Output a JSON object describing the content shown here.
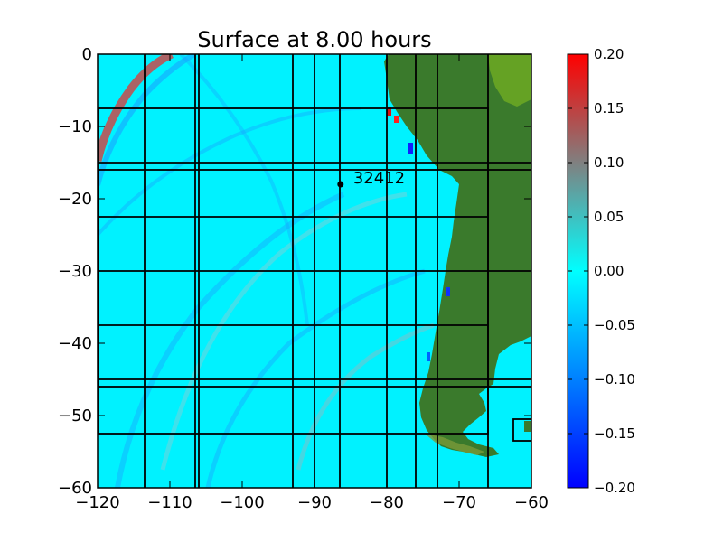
{
  "chart_data": {
    "type": "heatmap",
    "title": "Surface at 8.00 hours",
    "xlabel": "",
    "ylabel": "",
    "xlim": [
      -120,
      -60
    ],
    "ylim": [
      -60,
      0
    ],
    "x_ticks": [
      -120,
      -110,
      -100,
      -90,
      -80,
      -70,
      -60
    ],
    "y_ticks": [
      0,
      -10,
      -20,
      -30,
      -40,
      -50,
      -60
    ],
    "grid": false,
    "colorbar": {
      "range": [
        -0.2,
        0.2
      ],
      "ticks": [
        "0.20",
        "0.15",
        "0.10",
        "0.05",
        "0.00",
        "−0.05",
        "−0.10",
        "−0.15",
        "−0.20"
      ],
      "colors": [
        "#0000ff",
        "#0080ff",
        "#00ffff",
        "#808080",
        "#ff0000"
      ]
    },
    "colors": {
      "ocean": "#00f0ff",
      "land": "#3a7a2c",
      "highland": "#6aa020"
    },
    "gauge": {
      "label": "32412",
      "x": -86.4,
      "y": -18.0
    },
    "patch_boundaries": [
      {
        "x0": -120,
        "x1": -66,
        "y0": -52.5,
        "y1": -7.5
      },
      {
        "x0": -120,
        "x1": -60,
        "y0": -46,
        "y1": -16
      },
      {
        "x0": -113.5,
        "x1": -113.5,
        "y0": -60,
        "y1": 0
      },
      {
        "x0": -106.5,
        "x1": -106.5,
        "y0": -60,
        "y1": 0
      },
      {
        "x0": -106,
        "x1": -106,
        "y0": -60,
        "y1": 0
      },
      {
        "x0": -93,
        "x1": -93,
        "y0": -60,
        "y1": 0
      },
      {
        "x0": -90,
        "x1": -90,
        "y0": -60,
        "y1": 0
      },
      {
        "x0": -86.5,
        "x1": -86.5,
        "y0": -60,
        "y1": 0
      },
      {
        "x0": -80,
        "x1": -80,
        "y0": -60,
        "y1": 0
      },
      {
        "x0": -76,
        "x1": -76,
        "y0": -60,
        "y1": 0
      },
      {
        "x0": -73,
        "x1": -73,
        "y0": -60,
        "y1": 0
      },
      {
        "x0": -66,
        "x1": -66,
        "y0": -60,
        "y1": 0
      },
      {
        "x0": -120,
        "x1": -66,
        "y0": -22.5,
        "y1": -22.5
      },
      {
        "x0": -120,
        "x1": -60,
        "y0": -30,
        "y1": -30
      },
      {
        "x0": -120,
        "x1": -66,
        "y0": -37.5,
        "y1": -37.5
      },
      {
        "x0": -120,
        "x1": -60,
        "y0": -45,
        "y1": -45
      },
      {
        "x0": -120,
        "x1": -60,
        "y0": -15,
        "y1": -15
      },
      {
        "x0": -62.5,
        "x1": -60,
        "y0": -53.5,
        "y1": -50.5
      }
    ]
  }
}
